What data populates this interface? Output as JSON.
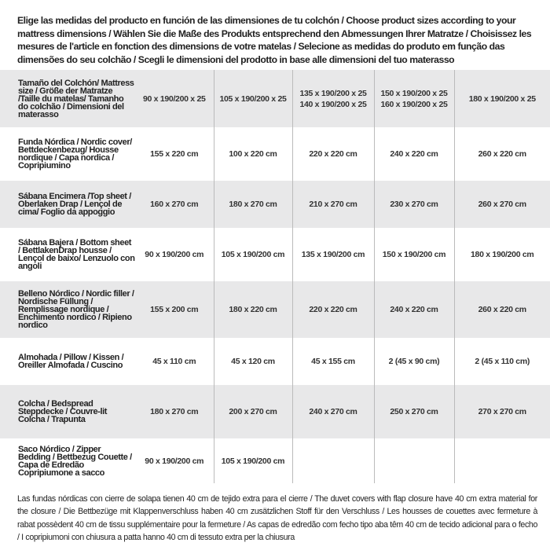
{
  "title": "Elige las medidas del producto en función de las dimensiones de tu colchón / Choose product sizes according to your mattress dimensions / Wählen Sie die Maße des Produkts entsprechend den Abmessungen Ihrer Matratze / Choisissez les mesures de l'article en fonction des dimensions de votre matelas / Selecione as medidas do produto em função das dimensões do seu colchão / Scegli le dimensioni del prodotto in base alle dimensioni del tuo materasso",
  "header": {
    "label": "Tamaño del Colchón/ Mattress size / Größe der Matratze /Taille du matelas/ Tamanho do colchão / Dimensioni del materasso",
    "sizes": [
      "90 x 190/200 x 25",
      "105 x 190/200 x 25",
      "135 x 190/200 x 25\n140 x 190/200 x 25",
      "150 x 190/200 x 25\n160 x 190/200 x 25",
      "180 x 190/200 x 25"
    ]
  },
  "rows": [
    {
      "label": "Funda Nórdica /  Nordic cover/ Bettdeckenbezug/ Housse nordique  / Capa nordica / Copripiumino",
      "values": [
        "155 x 220 cm",
        "100 x 220 cm",
        "220 x 220 cm",
        "240 x 220 cm",
        "260 x 220 cm"
      ]
    },
    {
      "label": "Sábana Encimera /Top sheet / Oberlaken Drap / Lençol de cima/ Foglio da appoggio",
      "values": [
        "160 x 270 cm",
        "180 x 270 cm",
        "210 x 270 cm",
        "230 x 270 cm",
        "260 x 270 cm"
      ]
    },
    {
      "label": "Sábana Bajera / Bottom sheet / BettlakenDrap housse / Lençol de baixo/ Lenzuolo con angoli",
      "values": [
        "90 x 190/200 cm",
        "105 x 190/200 cm",
        "135 x 190/200 cm",
        "150 x 190/200 cm",
        "180 x 190/200 cm"
      ]
    },
    {
      "label": "Belleno Nórdico / Nordic filler / Nordische Füllung / Remplissage nordique / Enchimento nordico / Ripieno nordico",
      "values": [
        "155 x 200 cm",
        "180 x 220 cm",
        "220 x 220 cm",
        "240 x 220 cm",
        "260 x 220 cm"
      ]
    },
    {
      "label": "Almohada  / Pillow / Kissen / Oreiller Almofada / Cuscino",
      "values": [
        "45 x 110 cm",
        "45 x 120 cm",
        "45 x 155 cm",
        "2 (45 x 90 cm)",
        "2 (45 x 110 cm)"
      ]
    },
    {
      "label": "Colcha / Bedspread Steppdecke / Couvre-lit Colcha / Trapunta",
      "values": [
        "180 x 270 cm",
        "200 x 270 cm",
        "240 x 270 cm",
        "250 x 270 cm",
        "270 x 270 cm"
      ]
    },
    {
      "label": "Saco Nórdico / Zipper Bedding / Bettbezug Couette  / Capa de Edredão Copripiumone a sacco",
      "values": [
        "90 x 190/200 cm",
        "105 x 190/200 cm",
        "",
        "",
        ""
      ]
    }
  ],
  "note": "Las fundas nórdicas con cierre de solapa tienen 40 cm de tejido extra para el cierre  / The duvet covers with flap closure have 40 cm extra material for the closure / Die Bettbezüge mit Klappenverschluss haben 40 cm zusätzlichen Stoff für den Verschluss / Les housses de couettes avec fermeture à rabat possèdent 40 cm de tissu supplémentaire pour la fermeture / As capas de edredão com fecho tipo aba têm 40 cm de tecido adicional para o fecho / I copripiumoni con chiusura a patta hanno 40 cm di tessuto extra per la chiusura",
  "colors": {
    "stripe": "#e8e8e9",
    "divider": "#bbbbbb",
    "text": "#222222"
  }
}
